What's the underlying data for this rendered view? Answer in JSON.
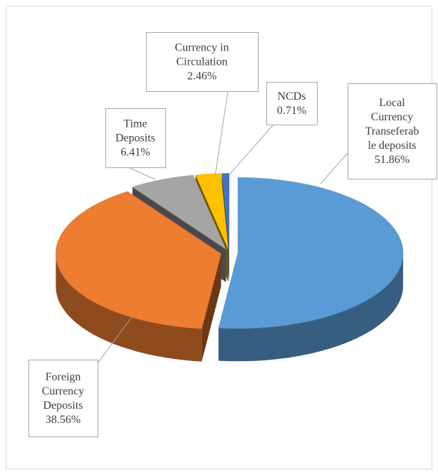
{
  "chart_data": {
    "type": "pie3d",
    "categories": [
      "Local Currency Transeferable deposits",
      "Foreign Currency Deposits",
      "Time Deposits",
      "Currency in Circulation",
      "NCDs"
    ],
    "values": [
      51.86,
      38.56,
      6.41,
      2.46,
      0.71
    ],
    "value_labels": [
      "51.86%",
      "38.56%",
      "6.41%",
      "2.46%",
      "0.71%"
    ],
    "colors": [
      "#5b9bd5",
      "#ed7d31",
      "#a5a5a5",
      "#ffc000",
      "#4472c4"
    ]
  }
}
